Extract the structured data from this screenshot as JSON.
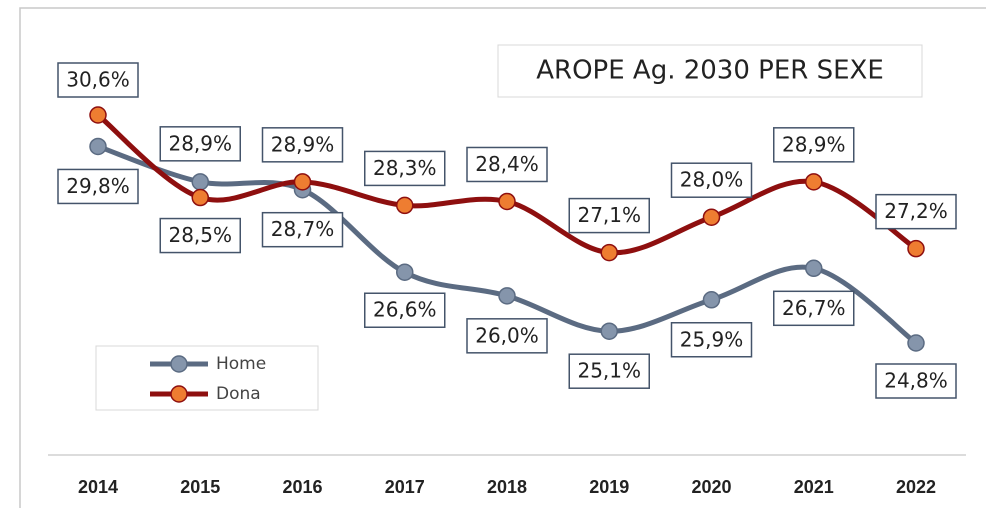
{
  "chart_data": {
    "type": "line",
    "title": "AROPE Ag. 2030 PER SEXE",
    "categories": [
      "2014",
      "2015",
      "2016",
      "2017",
      "2018",
      "2019",
      "2020",
      "2021",
      "2022"
    ],
    "series": [
      {
        "name": "Home",
        "color": "#5b6b82",
        "marker_color": "#8595ab",
        "values": [
          29.8,
          28.9,
          28.7,
          26.6,
          26.0,
          25.1,
          25.9,
          26.7,
          24.8
        ],
        "value_labels": [
          "29,8%",
          "28,9%",
          "28,7%",
          "26,6%",
          "26,0%",
          "25,1%",
          "25,9%",
          "26,7%",
          "24,8%"
        ]
      },
      {
        "name": "Dona",
        "color": "#8e0f0f",
        "marker_color": "#ee7d31",
        "values": [
          30.6,
          28.5,
          28.9,
          28.3,
          28.4,
          27.1,
          28.0,
          28.9,
          27.2
        ],
        "value_labels": [
          "30,6%",
          "28,5%",
          "28,9%",
          "28,3%",
          "28,4%",
          "27,1%",
          "28,0%",
          "28,9%",
          "27,2%"
        ]
      }
    ]
  }
}
